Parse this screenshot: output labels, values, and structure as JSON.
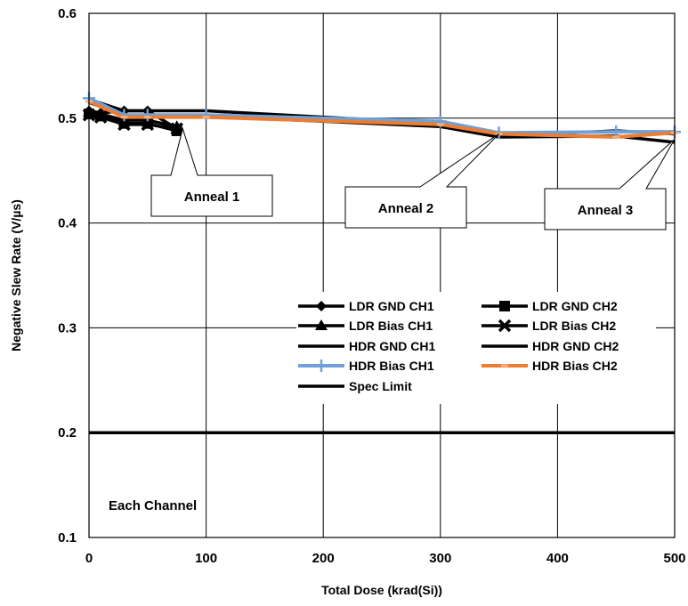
{
  "chart_data": {
    "type": "line",
    "xlabel": "Total Dose (krad(Si))",
    "ylabel": "Negative Slew Rate (V/µs)",
    "xlim": [
      0,
      500
    ],
    "ylim": [
      0.1,
      0.6
    ],
    "xticks": [
      0,
      100,
      200,
      300,
      400,
      500
    ],
    "yticks": [
      0.1,
      0.2,
      0.3,
      0.4,
      0.5,
      0.6
    ],
    "xtick_labels": [
      "0",
      "100",
      "200",
      "300",
      "400",
      "500"
    ],
    "ytick_labels": [
      "0.1",
      "0.2",
      "0.3",
      "0.4",
      "0.5",
      "0.6"
    ],
    "grid": true,
    "legend_position": "center-right",
    "note": "Each Channel",
    "series": [
      {
        "name": "LDR GND CH1",
        "color": "#000000",
        "marker": "diamond",
        "x": [
          0,
          10,
          30,
          50,
          75
        ],
        "y": [
          0.507,
          0.505,
          0.507,
          0.507,
          0.49
        ]
      },
      {
        "name": "LDR GND CH2",
        "color": "#000000",
        "marker": "square",
        "x": [
          0,
          10,
          30,
          50,
          75
        ],
        "y": [
          0.504,
          0.502,
          0.495,
          0.495,
          0.488
        ]
      },
      {
        "name": "LDR Bias CH1",
        "color": "#000000",
        "marker": "triangle",
        "x": [
          0,
          10,
          30,
          50,
          75
        ],
        "y": [
          0.506,
          0.504,
          0.498,
          0.498,
          0.492
        ]
      },
      {
        "name": "LDR Bias CH2",
        "color": "#000000",
        "marker": "x",
        "x": [
          0,
          10,
          30,
          50,
          75
        ],
        "y": [
          0.503,
          0.501,
          0.494,
          0.494,
          0.49
        ]
      },
      {
        "name": "HDR GND CH1",
        "color": "#000000",
        "marker": "none",
        "x": [
          0,
          30,
          100,
          300,
          350,
          450,
          500
        ],
        "y": [
          0.518,
          0.507,
          0.507,
          0.495,
          0.483,
          0.488,
          0.485
        ]
      },
      {
        "name": "HDR GND CH2",
        "color": "#000000",
        "marker": "none",
        "x": [
          0,
          30,
          100,
          300,
          350,
          450,
          500
        ],
        "y": [
          0.515,
          0.503,
          0.502,
          0.492,
          0.482,
          0.483,
          0.477
        ]
      },
      {
        "name": "HDR Bias CH1",
        "color": "#6fa0d8",
        "marker": "plus",
        "x": [
          0,
          30,
          50,
          100,
          300,
          350,
          450,
          500
        ],
        "y": [
          0.519,
          0.503,
          0.503,
          0.503,
          0.497,
          0.486,
          0.487,
          0.487
        ]
      },
      {
        "name": "HDR Bias CH2",
        "color": "#ed7d31",
        "marker": "dash",
        "x": [
          0,
          30,
          50,
          100,
          300,
          350,
          450,
          500
        ],
        "y": [
          0.516,
          0.501,
          0.501,
          0.501,
          0.494,
          0.485,
          0.482,
          0.486
        ]
      },
      {
        "name": "Spec Limit",
        "color": "#000000",
        "marker": "none",
        "x": [
          0,
          500
        ],
        "y": [
          0.2,
          0.2
        ]
      }
    ],
    "annotations": [
      {
        "text": "Anneal 1",
        "x": 80,
        "y": 0.49
      },
      {
        "text": "Anneal 2",
        "x": 350,
        "y": 0.485
      },
      {
        "text": "Anneal 3",
        "x": 500,
        "y": 0.48
      }
    ]
  }
}
